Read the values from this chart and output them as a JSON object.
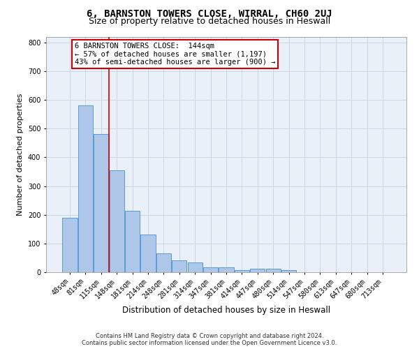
{
  "title": "6, BARNSTON TOWERS CLOSE, WIRRAL, CH60 2UJ",
  "subtitle": "Size of property relative to detached houses in Heswall",
  "xlabel": "Distribution of detached houses by size in Heswall",
  "ylabel": "Number of detached properties",
  "categories": [
    "48sqm",
    "81sqm",
    "115sqm",
    "148sqm",
    "181sqm",
    "214sqm",
    "248sqm",
    "281sqm",
    "314sqm",
    "347sqm",
    "381sqm",
    "414sqm",
    "447sqm",
    "480sqm",
    "514sqm",
    "547sqm",
    "580sqm",
    "613sqm",
    "647sqm",
    "680sqm",
    "713sqm"
  ],
  "values": [
    190,
    580,
    480,
    355,
    215,
    130,
    65,
    42,
    35,
    17,
    16,
    8,
    12,
    12,
    7,
    0,
    0,
    0,
    0,
    0,
    0
  ],
  "bar_color": "#aec6e8",
  "bar_edge_color": "#5b9bd5",
  "bar_edge_width": 0.7,
  "grid_color": "#c8d8e8",
  "background_color": "#eaf0f8",
  "ylim": [
    0,
    820
  ],
  "yticks": [
    0,
    100,
    200,
    300,
    400,
    500,
    600,
    700,
    800
  ],
  "red_line_index": 2.5,
  "annotation_text": "6 BARNSTON TOWERS CLOSE:  144sqm\n← 57% of detached houses are smaller (1,197)\n43% of semi-detached houses are larger (900) →",
  "annotation_box_color": "#ffffff",
  "annotation_box_edge_color": "#cc0000",
  "footer_line1": "Contains HM Land Registry data © Crown copyright and database right 2024.",
  "footer_line2": "Contains public sector information licensed under the Open Government Licence v3.0.",
  "title_fontsize": 10,
  "subtitle_fontsize": 9,
  "tick_fontsize": 7,
  "ylabel_fontsize": 8,
  "xlabel_fontsize": 8.5,
  "annotation_fontsize": 7.5,
  "footer_fontsize": 6
}
